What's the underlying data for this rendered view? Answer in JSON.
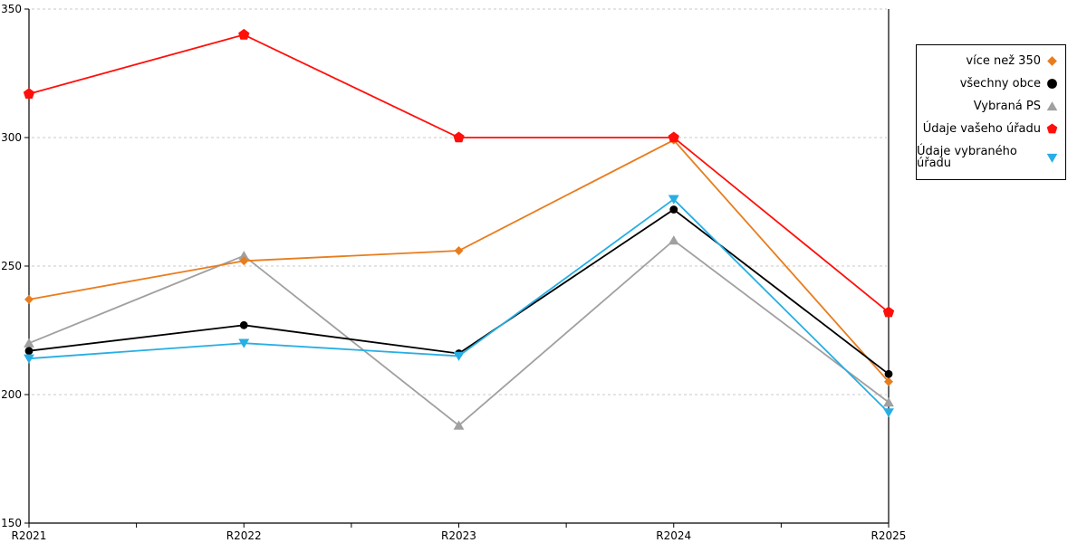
{
  "chart_data": {
    "type": "line",
    "categories": [
      "R2021",
      "R2022",
      "R2023",
      "R2024",
      "R2025"
    ],
    "series": [
      {
        "name": "více než 350",
        "color": "#E87D1E",
        "marker": "diamond",
        "values": [
          237,
          252,
          256,
          299,
          205
        ]
      },
      {
        "name": "všechny obce",
        "color": "#000000",
        "marker": "circle",
        "values": [
          217,
          227,
          216,
          272,
          208
        ]
      },
      {
        "name": "Vybraná PS",
        "color": "#A0A0A0",
        "marker": "triangle-up",
        "values": [
          220,
          254,
          188,
          260,
          197
        ]
      },
      {
        "name": "Údaje vašeho úřadu",
        "color": "#FF0F0A",
        "marker": "pentagon",
        "values": [
          317,
          340,
          300,
          300,
          232
        ]
      },
      {
        "name": "Údaje vybraného úřadu",
        "color": "#27AEE4",
        "marker": "triangle-down",
        "values": [
          214,
          220,
          215,
          276,
          193
        ]
      }
    ],
    "xlabel": "",
    "ylabel": "",
    "ylim": [
      150,
      350
    ],
    "yticks": [
      150,
      200,
      250,
      300,
      350
    ],
    "grid": "horizontal-dashed",
    "legend_position": "right",
    "colors": {
      "gridline": "#c9c9c9",
      "axis": "#000000",
      "background": "#ffffff"
    }
  }
}
